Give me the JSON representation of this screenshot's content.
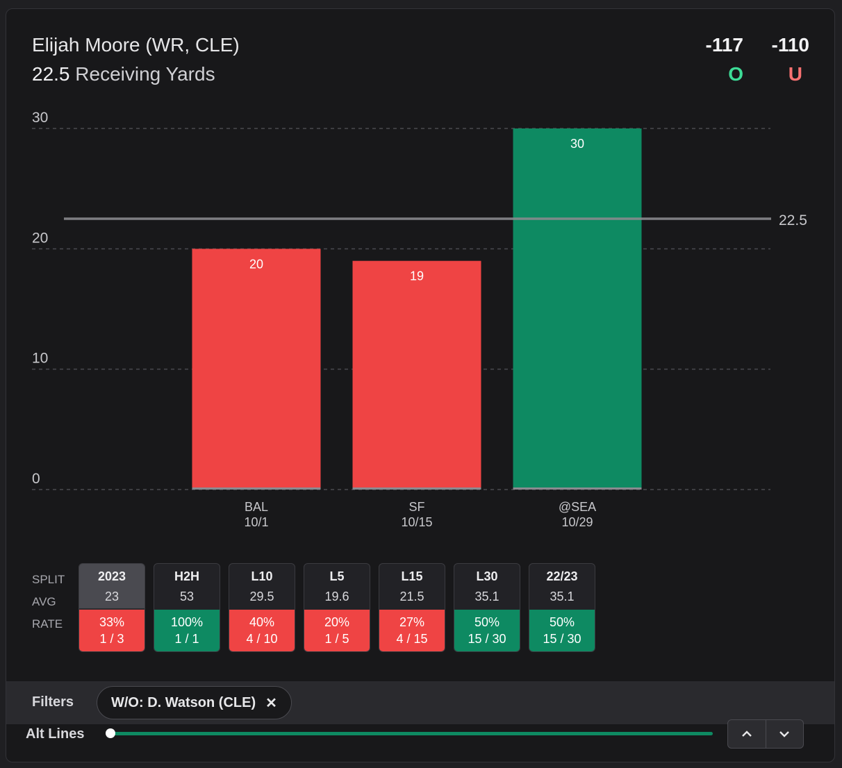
{
  "header": {
    "player": "Elijah Moore (WR, CLE)",
    "line_value": "22.5",
    "line_stat": "Receiving Yards",
    "over_odds": "-117",
    "under_odds": "-110",
    "over_label": "O",
    "under_label": "U"
  },
  "colors": {
    "over": "#0e8a62",
    "under": "#ef4444",
    "over_text": "#3ddc97",
    "under_text": "#f87171"
  },
  "chart_data": {
    "type": "bar",
    "title": "Elijah Moore (WR, CLE) 22.5 Receiving Yards",
    "categories": [
      "BAL",
      "SF",
      "@SEA"
    ],
    "dates": [
      "10/1",
      "10/15",
      "10/29"
    ],
    "values": [
      20,
      19,
      30
    ],
    "ylim": [
      0,
      30
    ],
    "yticks": [
      0,
      10,
      20,
      30
    ],
    "threshold": 22.5,
    "threshold_label": "22.5",
    "grid": true
  },
  "splits": {
    "row_labels": [
      "SPLIT",
      "AVG",
      "RATE"
    ],
    "items": [
      {
        "label": "2023",
        "avg": "23",
        "pct": "33%",
        "count": "1 / 3",
        "status": "under",
        "selected": true
      },
      {
        "label": "H2H",
        "avg": "53",
        "pct": "100%",
        "count": "1 / 1",
        "status": "over",
        "selected": false
      },
      {
        "label": "L10",
        "avg": "29.5",
        "pct": "40%",
        "count": "4 / 10",
        "status": "under",
        "selected": false
      },
      {
        "label": "L5",
        "avg": "19.6",
        "pct": "20%",
        "count": "1 / 5",
        "status": "under",
        "selected": false
      },
      {
        "label": "L15",
        "avg": "21.5",
        "pct": "27%",
        "count": "4 / 15",
        "status": "under",
        "selected": false
      },
      {
        "label": "L30",
        "avg": "35.1",
        "pct": "50%",
        "count": "15 / 30",
        "status": "over",
        "selected": false
      },
      {
        "label": "22/23",
        "avg": "35.1",
        "pct": "50%",
        "count": "15 / 30",
        "status": "over",
        "selected": false
      }
    ]
  },
  "filters": {
    "label": "Filters",
    "chip": "W/O: D. Watson (CLE)",
    "chip_close": "✕"
  },
  "alt_lines": {
    "label": "Alt Lines",
    "position_fraction": 0
  }
}
